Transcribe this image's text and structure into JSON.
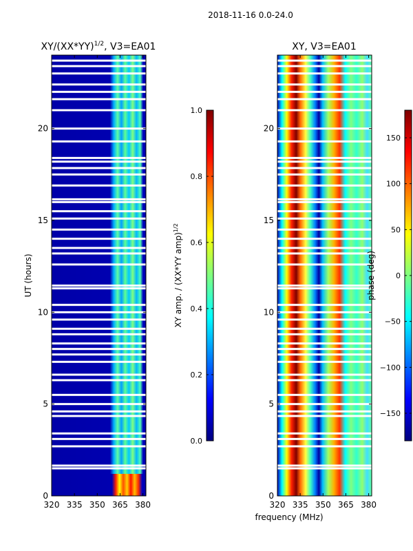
{
  "figure": {
    "suptitle": "2018-11-16 0.0-24.0",
    "xlabel": "frequency (MHz)"
  },
  "colormap": {
    "name": "jet",
    "stops": [
      "#00007f",
      "#0000ff",
      "#007fff",
      "#00ffff",
      "#7fff7f",
      "#ffff00",
      "#ff7f00",
      "#ff0000",
      "#7f0000"
    ]
  },
  "chart_data": [
    {
      "type": "heatmap",
      "title": "XY/(XX*YY)",
      "title_exponent": "1/2",
      "title_suffix": ", V3=EA01",
      "xlabel": "",
      "ylabel": "UT (hours)",
      "xlim": [
        320,
        382
      ],
      "ylim": [
        0,
        24
      ],
      "xticks": [
        320,
        335,
        350,
        365,
        380
      ],
      "yticks": [
        0,
        5,
        10,
        15,
        20
      ],
      "colorbar": {
        "label": "XY amp. / (XX*YY amp)",
        "label_exponent": "1/2",
        "range": [
          0.0,
          1.0
        ],
        "ticks": [
          "0.0",
          "0.2",
          "0.4",
          "0.6",
          "0.8",
          "1.0"
        ],
        "tick_values": [
          0.0,
          0.2,
          0.4,
          0.6,
          0.8,
          1.0
        ]
      },
      "description": "normalized amplitude, mostly ~0.05 below 362 MHz, 0.3-0.6 in 362-380 MHz band, up to ~0.9 in 0-1.2 h"
    },
    {
      "type": "heatmap",
      "title": "XY, V3=EA01",
      "xlabel": "frequency (MHz)",
      "ylabel": "",
      "xlim": [
        320,
        382
      ],
      "ylim": [
        0,
        24
      ],
      "xticks": [
        320,
        335,
        350,
        365,
        380
      ],
      "yticks": [
        0,
        5,
        10,
        15,
        20
      ],
      "colorbar": {
        "label": "phase (deg)",
        "range": [
          -180,
          180
        ],
        "ticks": [
          "−150",
          "−100",
          "−50",
          "0",
          "50",
          "100",
          "150"
        ],
        "tick_values": [
          -150,
          -100,
          -50,
          0,
          50,
          100,
          150
        ]
      },
      "description": "XY phase wrapping across frequency, bands of -180..180 deg"
    }
  ],
  "gaps_hours": [
    1.5,
    1.65,
    2.7,
    3.1,
    3.4,
    4.35,
    4.6,
    5.0,
    5.5,
    6.3,
    6.6,
    7.3,
    7.7,
    8.0,
    8.3,
    8.8,
    9.1,
    9.6,
    10.0,
    10.4,
    11.3,
    11.45,
    12.6,
    13.2,
    13.5,
    14.0,
    14.5,
    15.1,
    15.5,
    16.0,
    16.15,
    16.9,
    17.5,
    17.85,
    18.2,
    18.4,
    19.3,
    20.0,
    21.0,
    21.6,
    22.0,
    22.4,
    23.0,
    23.4,
    23.7
  ]
}
